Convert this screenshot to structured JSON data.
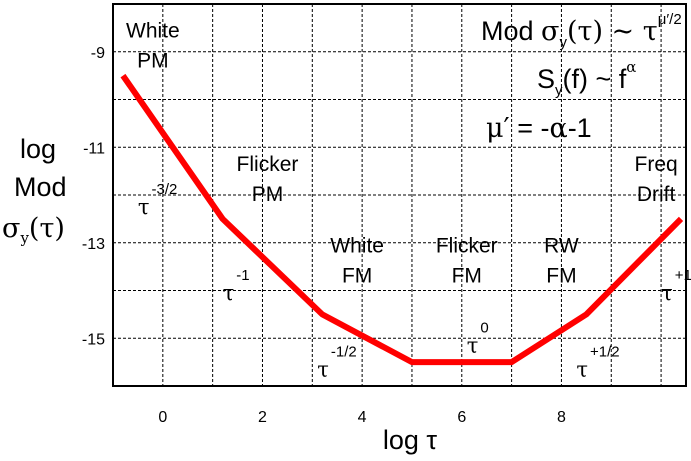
{
  "chart_data": {
    "type": "line",
    "ylabel_lines": [
      "log",
      "Mod",
      "σy(τ)"
    ],
    "xlabel": "log τ",
    "x_ticks": [
      "0",
      "2",
      "4",
      "6",
      "8"
    ],
    "y_ticks": [
      "-9",
      "-11",
      "-13",
      "-15"
    ],
    "xlim": [
      -1,
      10.5
    ],
    "ylim": [
      -16,
      -8
    ],
    "grid": true,
    "series": [
      {
        "color": "#ff0000",
        "x": [
          -0.8,
          1.2,
          3.2,
          5.0,
          7.0,
          8.5,
          10.4
        ],
        "y": [
          -9.5,
          -12.5,
          -14.5,
          -15.5,
          -15.5,
          -14.5,
          -12.5
        ]
      }
    ],
    "region_labels": [
      {
        "line1": "White",
        "line2": "PM"
      },
      {
        "line1": "Flicker",
        "line2": "PM"
      },
      {
        "line1": "White",
        "line2": "FM"
      },
      {
        "line1": "Flicker",
        "line2": "FM"
      },
      {
        "line1": "RW",
        "line2": "FM"
      },
      {
        "line1": "Freq",
        "line2": "Drift"
      }
    ],
    "slope_labels": [
      {
        "base": "τ",
        "exp": "-3/2"
      },
      {
        "base": "τ",
        "exp": "-1"
      },
      {
        "base": "τ",
        "exp": "-1/2"
      },
      {
        "base": "τ",
        "exp": "0"
      },
      {
        "base": "τ",
        "exp": "+1/2"
      },
      {
        "base": "τ",
        "exp": "+1"
      }
    ],
    "formulas": {
      "line1": {
        "prefix": "Mod ",
        "sigma": "σ",
        "sub": "y",
        "mid": "(τ) ~ τ",
        "exp": "μ′/2"
      },
      "line2": {
        "prefix": "S",
        "sub": "y",
        "mid": "(f) ~ f",
        "exp": "α"
      },
      "line3": {
        "mu": "μ′",
        "rest": " = -",
        "alpha": "α",
        "tail": "-1"
      }
    }
  }
}
